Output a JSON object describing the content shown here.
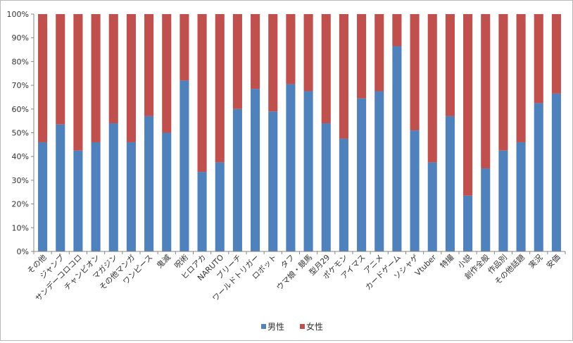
{
  "chart_data": {
    "type": "bar",
    "stacked": true,
    "percent_stacked": true,
    "categories": [
      "その他",
      "ジャンプ",
      "サンデーコロコロ",
      "チャンピオン",
      "マガジン",
      "その他マンガ",
      "ワンピース",
      "鬼滅",
      "呪術",
      "ヒロアカ",
      "NARUTO",
      "ブリーチ",
      "ワールドトリガー",
      "ロボット",
      "タフ",
      "ウマ娘・競馬",
      "型月29",
      "ポケモン",
      "アイマス",
      "アニメ",
      "カードゲーム",
      "ソシャゲ",
      "Vtuber",
      "特撮",
      "小説",
      "創作全般",
      "作品別",
      "その他話題",
      "実況",
      "安価"
    ],
    "series": [
      {
        "name": "男性",
        "color": "#4f81bd",
        "values": [
          46,
          53.5,
          42.5,
          46,
          54,
          46,
          57,
          50,
          72,
          33.5,
          37.5,
          60,
          68.5,
          59,
          70.5,
          67.5,
          54,
          47.5,
          64.5,
          67.5,
          86.5,
          51,
          37.5,
          57,
          23.5,
          35,
          42.5,
          46,
          62.5,
          66.5
        ]
      },
      {
        "name": "女性",
        "color": "#c0504d",
        "values": [
          54,
          46.5,
          57.5,
          54,
          46,
          54,
          43,
          50,
          28,
          66.5,
          62.5,
          40,
          31.5,
          41,
          29.5,
          32.5,
          46,
          52.5,
          35.5,
          32.5,
          13.5,
          49,
          62.5,
          43,
          76.5,
          65,
          57.5,
          54,
          37.5,
          33.5
        ]
      }
    ],
    "y_ticks": [
      "0%",
      "10%",
      "20%",
      "30%",
      "40%",
      "50%",
      "60%",
      "70%",
      "80%",
      "90%",
      "100%"
    ],
    "ylim": [
      0,
      100
    ],
    "grid": false,
    "legend_position": "bottom",
    "title": "",
    "xlabel": "",
    "ylabel": ""
  }
}
